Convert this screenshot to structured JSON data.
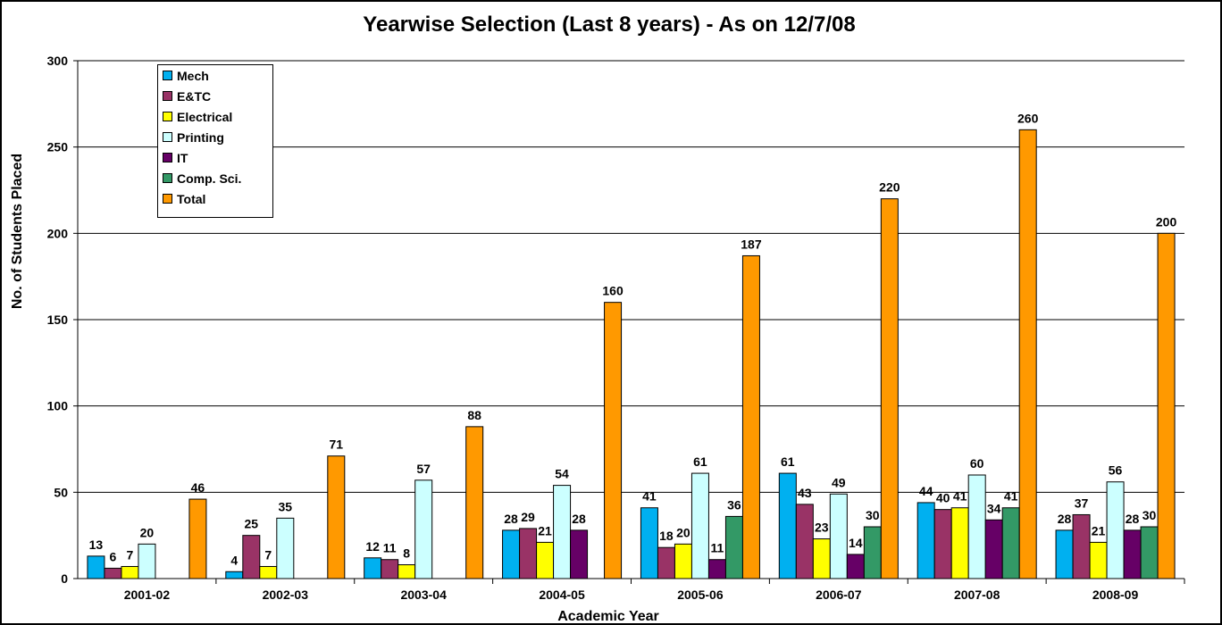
{
  "chart_data": {
    "type": "bar",
    "title": "Yearwise Selection (Last 8 years) - As on 12/7/08",
    "xlabel": "Academic Year",
    "ylabel": "No. of Students Placed",
    "ylim": [
      0,
      300
    ],
    "yticks": [
      0,
      50,
      100,
      150,
      200,
      250,
      300
    ],
    "grid": true,
    "legend_position": "top-left",
    "categories": [
      "2001-02",
      "2002-03",
      "2003-04",
      "2004-05",
      "2005-06",
      "2006-07",
      "2007-08",
      "2008-09"
    ],
    "series": [
      {
        "name": "Mech",
        "color": "#00B0F0",
        "values": [
          13,
          4,
          12,
          28,
          41,
          61,
          44,
          28
        ]
      },
      {
        "name": "E&TC",
        "color": "#993366",
        "values": [
          6,
          25,
          11,
          29,
          18,
          43,
          40,
          37
        ]
      },
      {
        "name": "Electrical",
        "color": "#FFFF00",
        "values": [
          7,
          7,
          8,
          21,
          20,
          23,
          41,
          21
        ]
      },
      {
        "name": "Printing",
        "color": "#CCFFFF",
        "values": [
          20,
          35,
          57,
          54,
          61,
          49,
          60,
          56
        ]
      },
      {
        "name": "IT",
        "color": "#660066",
        "values": [
          null,
          null,
          null,
          28,
          11,
          14,
          34,
          28
        ]
      },
      {
        "name": "Comp. Sci.",
        "color": "#339966",
        "values": [
          null,
          null,
          null,
          null,
          36,
          30,
          41,
          30
        ]
      },
      {
        "name": "Total",
        "color": "#FF9900",
        "values": [
          46,
          71,
          88,
          160,
          187,
          220,
          260,
          200
        ]
      }
    ]
  }
}
